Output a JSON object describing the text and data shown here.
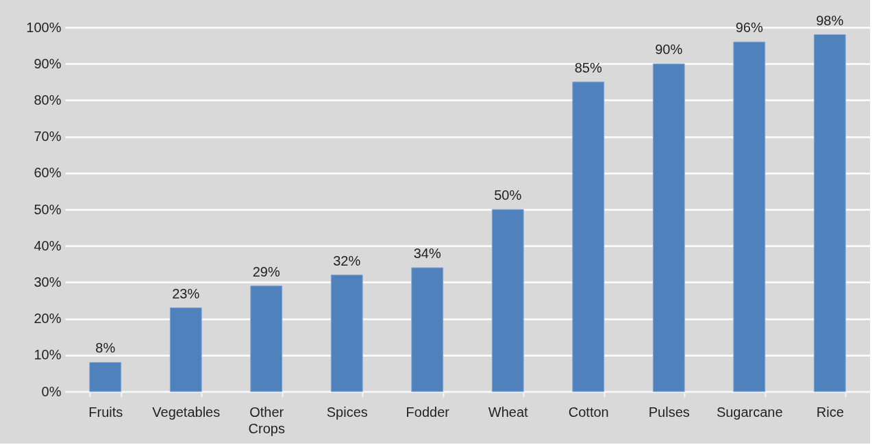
{
  "chart_data": {
    "type": "bar",
    "categories": [
      "Fruits",
      "Vegetables",
      "Other Crops",
      "Spices",
      "Fodder",
      "Wheat",
      "Cotton",
      "Pulses",
      "Sugarcane",
      "Rice"
    ],
    "values": [
      8,
      23,
      29,
      32,
      34,
      50,
      85,
      90,
      96,
      98
    ],
    "value_labels": [
      "8%",
      "23%",
      "29%",
      "32%",
      "34%",
      "50%",
      "85%",
      "90%",
      "96%",
      "98%"
    ],
    "color": "#4f81bd",
    "ylim": [
      0,
      100
    ],
    "yticks": [
      {
        "value": 0,
        "label": "0%"
      },
      {
        "value": 10,
        "label": "10%"
      },
      {
        "value": 20,
        "label": "20%"
      },
      {
        "value": 30,
        "label": "30%"
      },
      {
        "value": 40,
        "label": "40%"
      },
      {
        "value": 50,
        "label": "50%"
      },
      {
        "value": 60,
        "label": "60%"
      },
      {
        "value": 70,
        "label": "70%"
      },
      {
        "value": 80,
        "label": "80%"
      },
      {
        "value": 90,
        "label": "90%"
      },
      {
        "value": 100,
        "label": "100%"
      }
    ],
    "grid": "y"
  }
}
